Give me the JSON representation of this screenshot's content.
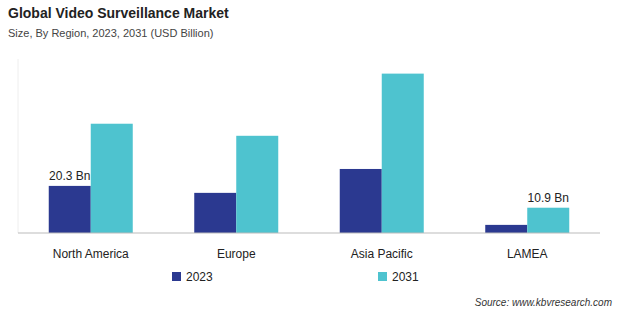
{
  "chart_data": {
    "type": "bar",
    "title": "Global Video Surveillance Market",
    "subtitle": "Size, By Region, 2023, 2031 (USD Billion)",
    "source": "Source: www.kbvresearch.com",
    "categories": [
      "North America",
      "Europe",
      "Asia Pacific",
      "LAMEA"
    ],
    "series": [
      {
        "name": "2023",
        "color": "#2b3990",
        "values": [
          20.3,
          17.3,
          27.6,
          3.5
        ],
        "value_labels": [
          "20.3 Bn",
          null,
          null,
          null
        ]
      },
      {
        "name": "2031",
        "color": "#4ec3cf",
        "values": [
          47.1,
          41.9,
          68.7,
          10.9
        ],
        "value_labels": [
          null,
          null,
          null,
          "10.9 Bn"
        ]
      }
    ],
    "ylim": [
      0,
      75
    ],
    "grid": false,
    "legend": "bottom",
    "tick_labels": "x"
  }
}
